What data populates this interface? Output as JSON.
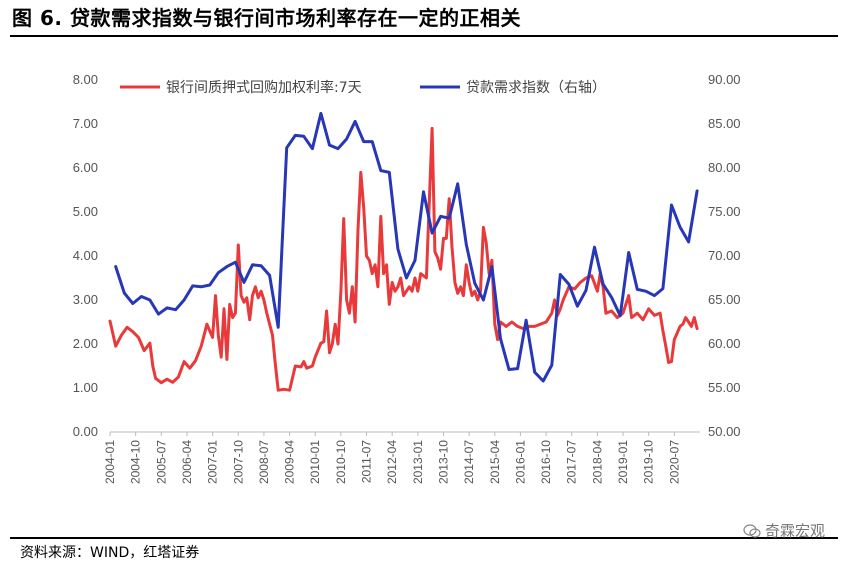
{
  "figure": {
    "title": "图 6. 贷款需求指数与银行间市场利率存在一定的正相关",
    "source": "资料来源：WIND，红塔证券",
    "watermark": "奇霖宏观",
    "watermark_icon": "wechat-icon"
  },
  "chart_data": {
    "type": "line",
    "title": "",
    "xlabel": "",
    "ylabel": "",
    "y_left": {
      "range": [
        0,
        8
      ],
      "ticks": [
        "0.00",
        "1.00",
        "2.00",
        "3.00",
        "4.00",
        "5.00",
        "6.00",
        "7.00",
        "8.00"
      ]
    },
    "y_right": {
      "range": [
        50,
        90
      ],
      "ticks": [
        "50.00",
        "55.00",
        "60.00",
        "65.00",
        "70.00",
        "75.00",
        "80.00",
        "85.00",
        "90.00"
      ]
    },
    "x_range": [
      "2004-01",
      "2021-04"
    ],
    "x_ticks": [
      "2004-01",
      "2004-10",
      "2005-07",
      "2006-04",
      "2007-01",
      "2007-10",
      "2008-07",
      "2009-04",
      "2010-01",
      "2010-10",
      "2011-07",
      "2012-04",
      "2013-01",
      "2013-10",
      "2014-07",
      "2015-04",
      "2016-01",
      "2016-10",
      "2017-07",
      "2018-04",
      "2019-01",
      "2019-10",
      "2020-07"
    ],
    "legend_position": "top",
    "grid": false,
    "series": [
      {
        "name": "银行间质押式回购加权利率:7天",
        "axis": "left",
        "color": "#e83a3a",
        "points": [
          [
            "2004-01",
            2.52
          ],
          [
            "2004-03",
            1.95
          ],
          [
            "2004-05",
            2.2
          ],
          [
            "2004-07",
            2.38
          ],
          [
            "2004-09",
            2.28
          ],
          [
            "2004-11",
            2.15
          ],
          [
            "2005-01",
            1.85
          ],
          [
            "2005-03",
            2.02
          ],
          [
            "2005-04",
            1.5
          ],
          [
            "2005-05",
            1.22
          ],
          [
            "2005-07",
            1.12
          ],
          [
            "2005-09",
            1.2
          ],
          [
            "2005-11",
            1.13
          ],
          [
            "2006-01",
            1.25
          ],
          [
            "2006-03",
            1.6
          ],
          [
            "2006-05",
            1.45
          ],
          [
            "2006-07",
            1.62
          ],
          [
            "2006-09",
            1.95
          ],
          [
            "2006-11",
            2.45
          ],
          [
            "2007-01",
            2.15
          ],
          [
            "2007-02",
            3.1
          ],
          [
            "2007-03",
            2.2
          ],
          [
            "2007-04",
            1.7
          ],
          [
            "2007-05",
            2.8
          ],
          [
            "2007-06",
            1.65
          ],
          [
            "2007-07",
            2.9
          ],
          [
            "2007-08",
            2.6
          ],
          [
            "2007-09",
            2.7
          ],
          [
            "2007-10",
            4.25
          ],
          [
            "2007-11",
            3.1
          ],
          [
            "2007-12",
            2.95
          ],
          [
            "2008-01",
            3.05
          ],
          [
            "2008-02",
            2.55
          ],
          [
            "2008-03",
            3.1
          ],
          [
            "2008-04",
            3.3
          ],
          [
            "2008-05",
            3.05
          ],
          [
            "2008-06",
            3.2
          ],
          [
            "2008-07",
            3.0
          ],
          [
            "2008-08",
            2.7
          ],
          [
            "2008-10",
            2.2
          ],
          [
            "2008-11",
            1.55
          ],
          [
            "2008-12",
            0.95
          ],
          [
            "2009-02",
            0.97
          ],
          [
            "2009-04",
            0.95
          ],
          [
            "2009-06",
            1.5
          ],
          [
            "2009-08",
            1.48
          ],
          [
            "2009-09",
            1.6
          ],
          [
            "2009-10",
            1.45
          ],
          [
            "2009-12",
            1.5
          ],
          [
            "2010-01",
            1.7
          ],
          [
            "2010-03",
            2.02
          ],
          [
            "2010-04",
            2.05
          ],
          [
            "2010-05",
            2.75
          ],
          [
            "2010-06",
            1.8
          ],
          [
            "2010-07",
            2.0
          ],
          [
            "2010-08",
            2.45
          ],
          [
            "2010-09",
            2.0
          ],
          [
            "2010-10",
            3.2
          ],
          [
            "2010-11",
            4.85
          ],
          [
            "2010-12",
            3.0
          ],
          [
            "2011-01",
            2.7
          ],
          [
            "2011-02",
            3.3
          ],
          [
            "2011-03",
            2.5
          ],
          [
            "2011-04",
            4.6
          ],
          [
            "2011-05",
            5.9
          ],
          [
            "2011-06",
            5.1
          ],
          [
            "2011-07",
            4.0
          ],
          [
            "2011-08",
            3.9
          ],
          [
            "2011-09",
            3.6
          ],
          [
            "2011-10",
            3.8
          ],
          [
            "2011-11",
            3.3
          ],
          [
            "2011-12",
            4.9
          ],
          [
            "2012-01",
            3.6
          ],
          [
            "2012-02",
            3.8
          ],
          [
            "2012-03",
            2.9
          ],
          [
            "2012-04",
            3.4
          ],
          [
            "2012-05",
            3.2
          ],
          [
            "2012-06",
            3.3
          ],
          [
            "2012-07",
            3.5
          ],
          [
            "2012-08",
            3.1
          ],
          [
            "2012-09",
            3.2
          ],
          [
            "2012-10",
            3.3
          ],
          [
            "2012-11",
            3.2
          ],
          [
            "2012-12",
            3.5
          ],
          [
            "2013-01",
            3.2
          ],
          [
            "2013-02",
            3.6
          ],
          [
            "2013-04",
            3.5
          ],
          [
            "2013-06",
            6.9
          ],
          [
            "2013-07",
            4.1
          ],
          [
            "2013-08",
            3.95
          ],
          [
            "2013-09",
            3.7
          ],
          [
            "2013-10",
            4.4
          ],
          [
            "2013-11",
            4.4
          ],
          [
            "2013-12",
            5.3
          ],
          [
            "2014-01",
            4.2
          ],
          [
            "2014-02",
            3.4
          ],
          [
            "2014-03",
            3.15
          ],
          [
            "2014-04",
            3.3
          ],
          [
            "2014-05",
            3.1
          ],
          [
            "2014-06",
            3.8
          ],
          [
            "2014-07",
            3.4
          ],
          [
            "2014-08",
            3.1
          ],
          [
            "2014-09",
            3.2
          ],
          [
            "2014-10",
            3.0
          ],
          [
            "2014-11",
            3.2
          ],
          [
            "2014-12",
            4.65
          ],
          [
            "2015-01",
            4.3
          ],
          [
            "2015-02",
            3.6
          ],
          [
            "2015-03",
            3.9
          ],
          [
            "2015-04",
            2.45
          ],
          [
            "2015-05",
            2.1
          ],
          [
            "2015-06",
            2.5
          ],
          [
            "2015-08",
            2.4
          ],
          [
            "2015-10",
            2.5
          ],
          [
            "2015-12",
            2.4
          ],
          [
            "2016-02",
            2.35
          ],
          [
            "2016-04",
            2.4
          ],
          [
            "2016-06",
            2.4
          ],
          [
            "2016-08",
            2.45
          ],
          [
            "2016-10",
            2.5
          ],
          [
            "2016-12",
            2.7
          ],
          [
            "2017-01",
            3.0
          ],
          [
            "2017-02",
            2.65
          ],
          [
            "2017-03",
            2.8
          ],
          [
            "2017-04",
            3.0
          ],
          [
            "2017-06",
            3.3
          ],
          [
            "2017-08",
            3.25
          ],
          [
            "2017-10",
            3.4
          ],
          [
            "2017-12",
            3.5
          ],
          [
            "2018-02",
            3.55
          ],
          [
            "2018-04",
            3.2
          ],
          [
            "2018-05",
            3.6
          ],
          [
            "2018-06",
            3.3
          ],
          [
            "2018-07",
            2.7
          ],
          [
            "2018-09",
            2.75
          ],
          [
            "2018-11",
            2.6
          ],
          [
            "2019-01",
            2.7
          ],
          [
            "2019-03",
            3.1
          ],
          [
            "2019-04",
            2.6
          ],
          [
            "2019-06",
            2.7
          ],
          [
            "2019-08",
            2.55
          ],
          [
            "2019-10",
            2.8
          ],
          [
            "2019-12",
            2.65
          ],
          [
            "2020-02",
            2.7
          ],
          [
            "2020-03",
            2.3
          ],
          [
            "2020-04",
            1.95
          ],
          [
            "2020-05",
            1.58
          ],
          [
            "2020-06",
            1.6
          ],
          [
            "2020-07",
            2.1
          ],
          [
            "2020-08",
            2.25
          ],
          [
            "2020-09",
            2.4
          ],
          [
            "2020-10",
            2.45
          ],
          [
            "2020-11",
            2.6
          ],
          [
            "2020-12",
            2.5
          ],
          [
            "2021-01",
            2.4
          ],
          [
            "2021-02",
            2.6
          ],
          [
            "2021-03",
            2.35
          ]
        ]
      },
      {
        "name": "贷款需求指数（右轴）",
        "axis": "right",
        "color": "#2737b6",
        "points": [
          [
            "2004-03",
            68.8
          ],
          [
            "2004-06",
            65.8
          ],
          [
            "2004-09",
            64.6
          ],
          [
            "2004-12",
            65.4
          ],
          [
            "2005-03",
            65.0
          ],
          [
            "2005-06",
            63.4
          ],
          [
            "2005-09",
            64.1
          ],
          [
            "2005-12",
            63.9
          ],
          [
            "2006-03",
            65.0
          ],
          [
            "2006-06",
            66.6
          ],
          [
            "2006-09",
            66.5
          ],
          [
            "2006-12",
            66.7
          ],
          [
            "2007-03",
            68.1
          ],
          [
            "2007-06",
            68.8
          ],
          [
            "2007-09",
            69.3
          ],
          [
            "2007-12",
            67.0
          ],
          [
            "2008-03",
            69.0
          ],
          [
            "2008-06",
            68.9
          ],
          [
            "2008-09",
            67.8
          ],
          [
            "2008-12",
            61.9
          ],
          [
            "2009-03",
            82.3
          ],
          [
            "2009-06",
            83.7
          ],
          [
            "2009-09",
            83.6
          ],
          [
            "2009-12",
            82.2
          ],
          [
            "2010-03",
            86.2
          ],
          [
            "2010-06",
            82.6
          ],
          [
            "2010-09",
            82.2
          ],
          [
            "2010-12",
            83.3
          ],
          [
            "2011-03",
            85.3
          ],
          [
            "2011-06",
            83.0
          ],
          [
            "2011-09",
            83.0
          ],
          [
            "2011-12",
            79.7
          ],
          [
            "2012-03",
            79.5
          ],
          [
            "2012-06",
            70.8
          ],
          [
            "2012-09",
            67.5
          ],
          [
            "2012-12",
            69.5
          ],
          [
            "2013-03",
            77.3
          ],
          [
            "2013-06",
            72.6
          ],
          [
            "2013-09",
            74.5
          ],
          [
            "2013-12",
            74.3
          ],
          [
            "2014-03",
            78.2
          ],
          [
            "2014-06",
            71.3
          ],
          [
            "2014-09",
            66.9
          ],
          [
            "2014-12",
            65.0
          ],
          [
            "2015-03",
            68.8
          ],
          [
            "2015-06",
            60.6
          ],
          [
            "2015-09",
            57.1
          ],
          [
            "2015-12",
            57.2
          ],
          [
            "2016-03",
            62.7
          ],
          [
            "2016-06",
            56.8
          ],
          [
            "2016-09",
            55.8
          ],
          [
            "2016-12",
            57.6
          ],
          [
            "2017-03",
            67.9
          ],
          [
            "2017-06",
            66.8
          ],
          [
            "2017-09",
            64.3
          ],
          [
            "2017-12",
            66.1
          ],
          [
            "2018-03",
            71.0
          ],
          [
            "2018-06",
            66.8
          ],
          [
            "2018-09",
            65.3
          ],
          [
            "2018-12",
            63.2
          ],
          [
            "2019-03",
            70.4
          ],
          [
            "2019-06",
            66.2
          ],
          [
            "2019-09",
            66.0
          ],
          [
            "2019-12",
            65.5
          ],
          [
            "2020-03",
            66.3
          ],
          [
            "2020-06",
            75.8
          ],
          [
            "2020-09",
            73.3
          ],
          [
            "2020-12",
            71.6
          ],
          [
            "2021-03",
            77.4
          ]
        ]
      }
    ]
  }
}
